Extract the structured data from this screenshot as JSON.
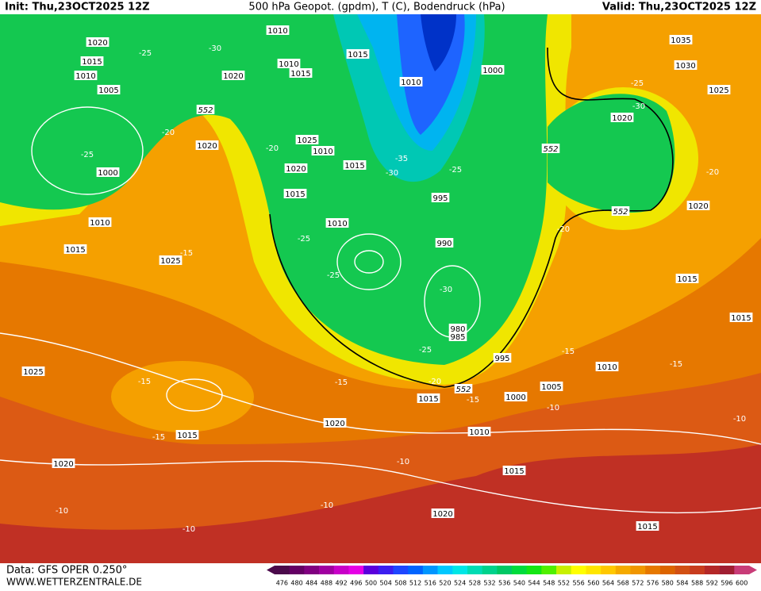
{
  "header": {
    "init": "Init: Thu,23OCT2025 12Z",
    "title": "500 hPa Geopot. (gpdm), T (C), Bodendruck (hPa)",
    "valid": "Valid: Thu,23OCT2025 12Z"
  },
  "footer": {
    "data_source": "Data: GFS OPER 0.250°",
    "website": "WWW.WETTERZENTRALE.DE"
  },
  "colorbar": {
    "ticks": [
      476,
      480,
      484,
      488,
      492,
      496,
      500,
      504,
      508,
      512,
      516,
      520,
      524,
      528,
      532,
      536,
      540,
      544,
      548,
      552,
      556,
      560,
      564,
      568,
      572,
      576,
      580,
      584,
      588,
      592,
      596,
      600
    ],
    "colors": [
      "#4b0a4b",
      "#640064",
      "#800080",
      "#a000a0",
      "#c800c8",
      "#e600e6",
      "#5a00dc",
      "#3c1ef0",
      "#1e46ff",
      "#0064ff",
      "#0096ff",
      "#00c8ff",
      "#00e6e6",
      "#00dcb4",
      "#00d28c",
      "#00c864",
      "#00dc3c",
      "#14e614",
      "#50f000",
      "#c8f000",
      "#ffff00",
      "#ffe600",
      "#ffc800",
      "#f5aa00",
      "#f09600",
      "#e67800",
      "#dc6400",
      "#d25014",
      "#c83c1e",
      "#b42828",
      "#a01e32",
      "#c83c78"
    ]
  },
  "contour_labels": [
    "1020",
    "-25",
    "1015",
    "1010",
    "1005",
    "-20",
    "-25",
    "1000",
    "1010",
    "1015",
    "1025",
    "-15",
    "1025",
    "-15",
    "-15",
    "1015",
    "1020",
    "-10",
    "-10",
    "1020",
    "-15",
    "-10",
    "-10",
    "1020",
    "1015",
    "1010",
    "1000",
    "1015",
    "-20",
    "552",
    "-15",
    "1005",
    "-10",
    "995",
    "-25",
    "985",
    "980",
    "-30",
    "990",
    "995",
    "-25",
    "-25",
    "1010",
    "1015",
    "1020",
    "1010",
    "1025",
    "1015",
    "-20",
    "-30",
    "-35",
    "-25",
    "1010",
    "1000",
    "1015",
    "1010",
    "1015",
    "1010",
    "1020",
    "-30",
    "552",
    "1020",
    "1035",
    "1030",
    "-25",
    "1025",
    "-30",
    "1020",
    "552",
    "-20",
    "552",
    "1020",
    "-20",
    "1015",
    "1015",
    "-15",
    "1010",
    "-15",
    "-10",
    "1015"
  ]
}
